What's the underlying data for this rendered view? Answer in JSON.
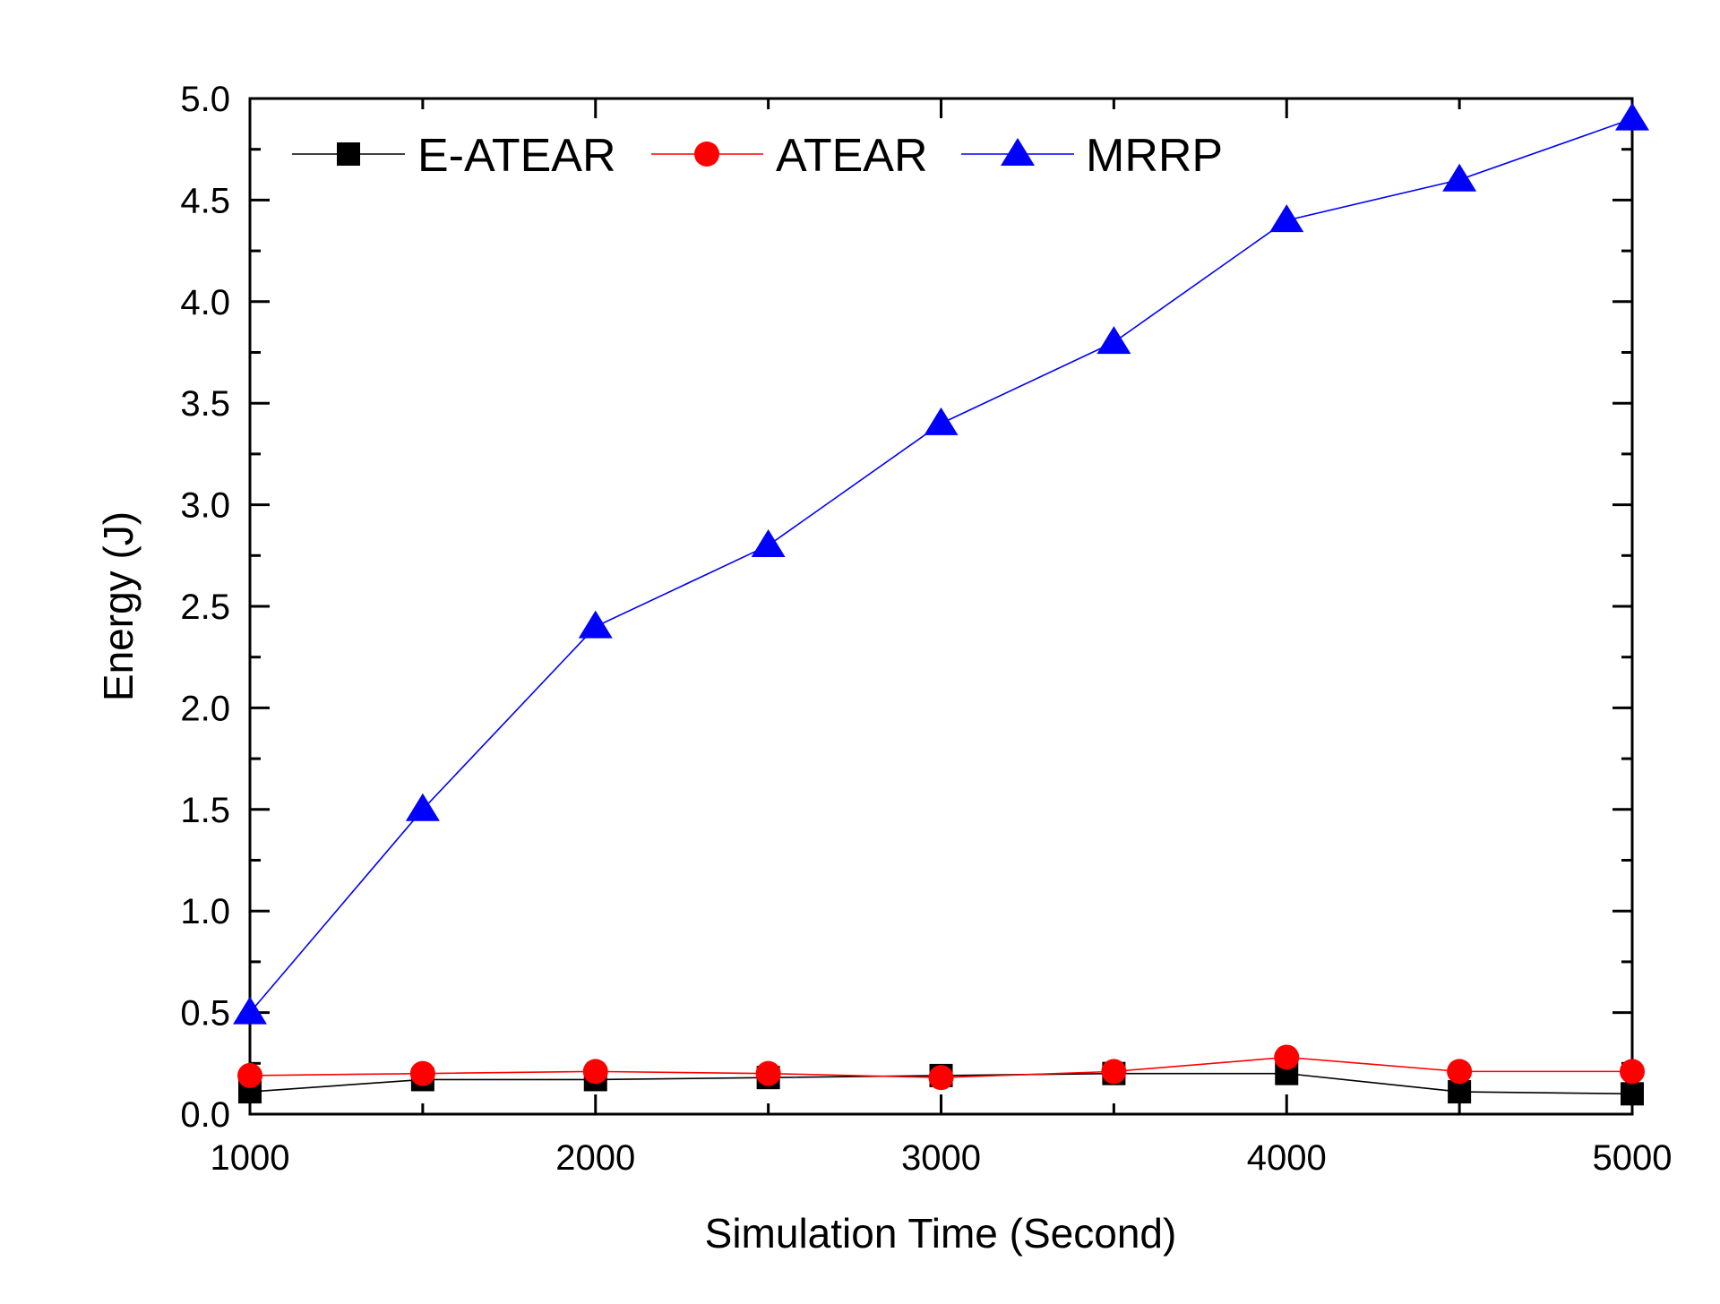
{
  "chart_data": {
    "type": "line",
    "title": "",
    "xlabel": "Simulation Time (Second)",
    "ylabel": "Energy (J)",
    "xlim": [
      1000,
      5000
    ],
    "ylim": [
      0,
      5.0
    ],
    "x_ticks": [
      "1000",
      "2000",
      "3000",
      "4000",
      "5000"
    ],
    "y_ticks": [
      "0.0",
      "0.5",
      "1.0",
      "1.5",
      "2.0",
      "2.5",
      "3.0",
      "3.5",
      "4.0",
      "4.5",
      "5.0"
    ],
    "x": [
      1000,
      1500,
      2000,
      2500,
      3000,
      3500,
      4000,
      4500,
      5000
    ],
    "grid": false,
    "legend_position": "top-left",
    "series": [
      {
        "name": "E-ATEAR",
        "color": "#000000",
        "marker": "square",
        "values": [
          0.11,
          0.17,
          0.17,
          0.18,
          0.19,
          0.2,
          0.2,
          0.11,
          0.1
        ]
      },
      {
        "name": "ATEAR",
        "color": "#ff0000",
        "marker": "circle",
        "values": [
          0.19,
          0.2,
          0.21,
          0.2,
          0.18,
          0.21,
          0.28,
          0.21,
          0.21
        ]
      },
      {
        "name": "MRRP",
        "color": "#0000ff",
        "marker": "triangle",
        "values": [
          0.5,
          1.5,
          2.4,
          2.8,
          3.4,
          3.8,
          4.4,
          4.6,
          4.9
        ]
      }
    ]
  }
}
